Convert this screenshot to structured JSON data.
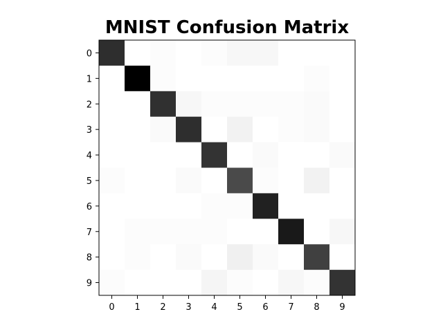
{
  "chart_data": {
    "type": "heatmap",
    "title": "MNIST Confusion Matrix",
    "xlabel": "",
    "ylabel": "",
    "x_ticks": [
      "0",
      "1",
      "2",
      "3",
      "4",
      "5",
      "6",
      "7",
      "8",
      "9"
    ],
    "y_ticks": [
      "0",
      "1",
      "2",
      "3",
      "4",
      "5",
      "6",
      "7",
      "8",
      "9"
    ],
    "colormap": "Greys",
    "color_min": "#ffffff",
    "color_max": "#000000",
    "vmin": 0,
    "vmax": 1.0,
    "grid": false,
    "values": [
      [
        0.82,
        0.0,
        0.01,
        0.0,
        0.01,
        0.03,
        0.03,
        0.0,
        0.0,
        0.0
      ],
      [
        0.0,
        1.0,
        0.01,
        0.0,
        0.0,
        0.0,
        0.0,
        0.0,
        0.01,
        0.0
      ],
      [
        0.0,
        0.0,
        0.81,
        0.03,
        0.01,
        0.01,
        0.01,
        0.01,
        0.02,
        0.0
      ],
      [
        0.0,
        0.0,
        0.02,
        0.82,
        0.0,
        0.05,
        0.0,
        0.01,
        0.02,
        0.0
      ],
      [
        0.0,
        0.0,
        0.0,
        0.0,
        0.8,
        0.0,
        0.02,
        0.0,
        0.0,
        0.02
      ],
      [
        0.01,
        0.0,
        0.0,
        0.02,
        0.0,
        0.71,
        0.01,
        0.0,
        0.05,
        0.0
      ],
      [
        0.0,
        0.0,
        0.0,
        0.0,
        0.01,
        0.01,
        0.87,
        0.0,
        0.0,
        0.0
      ],
      [
        0.0,
        0.01,
        0.01,
        0.01,
        0.01,
        0.0,
        0.0,
        0.9,
        0.0,
        0.03
      ],
      [
        0.0,
        0.01,
        0.0,
        0.02,
        0.0,
        0.06,
        0.02,
        0.0,
        0.75,
        0.0
      ],
      [
        0.01,
        0.0,
        0.0,
        0.0,
        0.04,
        0.01,
        0.0,
        0.03,
        0.01,
        0.8
      ]
    ]
  }
}
